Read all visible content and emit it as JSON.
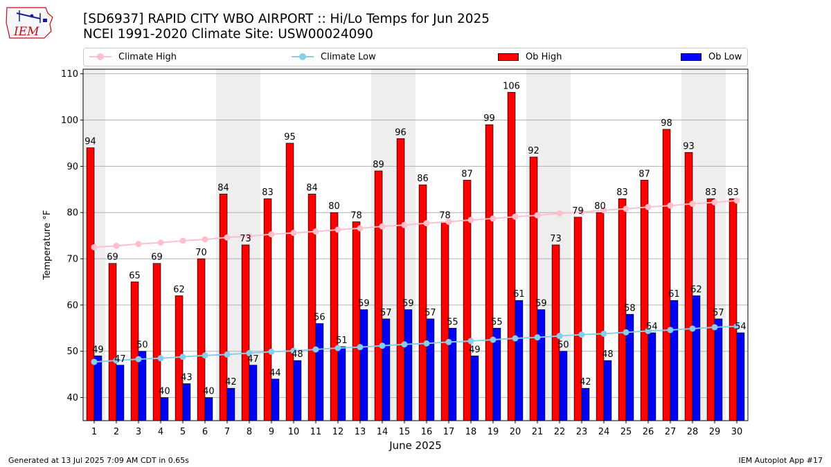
{
  "title_line1": "[SD6937] RAPID CITY WBO AIRPORT :: Hi/Lo Temps for Jun 2025",
  "title_line2": "NCEI 1991-2020 Climate Site: USW00024090",
  "logo_text": "IEM",
  "footer_left": "Generated at 13 Jul 2025 7:09 AM CDT in 0.65s",
  "footer_right": "IEM Autoplot App #17",
  "colors": {
    "ob_high": "#ff0000",
    "ob_low": "#0000ff",
    "climate_high": "#ffc0cb",
    "climate_low": "#87ceeb",
    "weekend_band": "#eeeeee",
    "grid": "#b0b0b0"
  },
  "legend": {
    "climate_high": "Climate High",
    "climate_low": "Climate Low",
    "ob_high": "Ob High",
    "ob_low": "Ob Low"
  },
  "chart_data": {
    "type": "bar",
    "xlabel": "June 2025",
    "ylabel": "Temperature °F",
    "ylim": [
      35,
      111
    ],
    "yticks": [
      40,
      50,
      60,
      70,
      80,
      90,
      100,
      110
    ],
    "grid": "horizontal",
    "legend_position": "top",
    "categories": [
      "1",
      "2",
      "3",
      "4",
      "5",
      "6",
      "7",
      "8",
      "9",
      "10",
      "11",
      "12",
      "13",
      "14",
      "15",
      "16",
      "17",
      "18",
      "19",
      "20",
      "21",
      "22",
      "23",
      "24",
      "25",
      "26",
      "27",
      "28",
      "29",
      "30"
    ],
    "weekend_days": [
      1,
      7,
      8,
      14,
      15,
      21,
      22,
      28,
      29
    ],
    "series": [
      {
        "name": "Ob High",
        "kind": "bar",
        "values": [
          94,
          69,
          65,
          69,
          62,
          70,
          84,
          73,
          83,
          95,
          84,
          80,
          78,
          89,
          96,
          86,
          78,
          87,
          99,
          106,
          92,
          73,
          79,
          80,
          83,
          87,
          98,
          93,
          83,
          83
        ]
      },
      {
        "name": "Ob Low",
        "kind": "bar",
        "values": [
          49,
          47,
          50,
          40,
          43,
          40,
          42,
          47,
          44,
          48,
          56,
          51,
          59,
          57,
          59,
          57,
          55,
          49,
          55,
          61,
          59,
          50,
          42,
          48,
          58,
          54,
          61,
          62,
          57,
          54
        ]
      },
      {
        "name": "Climate High",
        "kind": "line",
        "values": [
          72.5,
          72.8,
          73.2,
          73.5,
          73.9,
          74.2,
          74.6,
          74.9,
          75.3,
          75.6,
          75.9,
          76.3,
          76.6,
          77.0,
          77.3,
          77.7,
          78.0,
          78.4,
          78.7,
          79.1,
          79.4,
          79.8,
          80.1,
          80.5,
          80.8,
          81.2,
          81.5,
          81.9,
          82.2,
          82.6
        ]
      },
      {
        "name": "Climate Low",
        "kind": "line",
        "values": [
          47.7,
          48.0,
          48.3,
          48.5,
          48.8,
          49.1,
          49.3,
          49.6,
          49.9,
          50.1,
          50.4,
          50.7,
          50.9,
          51.2,
          51.5,
          51.7,
          52.0,
          52.2,
          52.5,
          52.8,
          53.0,
          53.3,
          53.6,
          53.8,
          54.1,
          54.4,
          54.6,
          54.9,
          55.2,
          55.4
        ]
      }
    ]
  }
}
